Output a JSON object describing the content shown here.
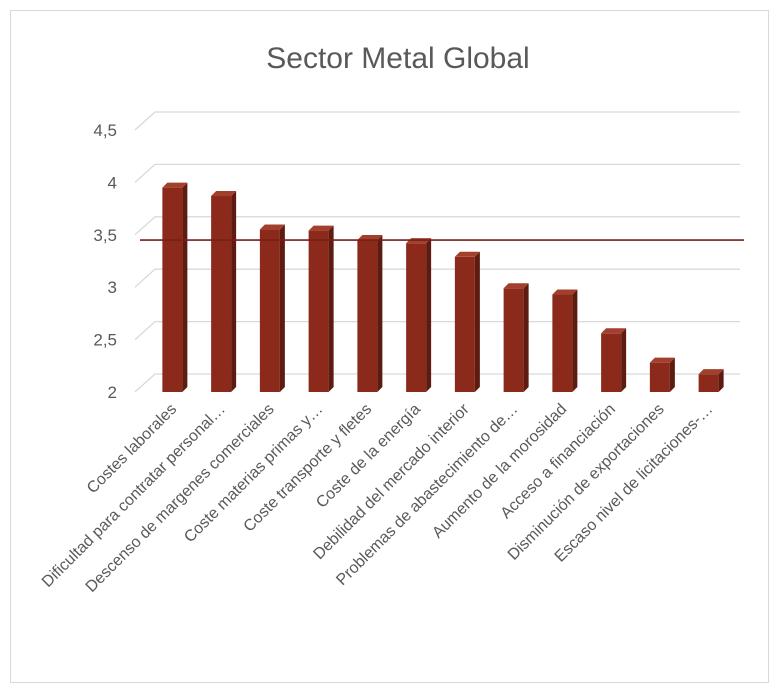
{
  "chart_data": {
    "type": "bar",
    "title": "Sector Metal Global",
    "categories": [
      "Costes laborales",
      "Dificultad para contratar personal…",
      "Descenso de margenes comerciales",
      "Coste materias primas y…",
      "Coste transporte y fletes",
      "Coste de la energía",
      "Debilidad del mercado interior",
      "Problemas de abastecimiento de…",
      "Aumento de la morosidad",
      "Acceso a  financiación",
      "Disminución de exportaciones",
      "Escaso nivel de licitaciones-…"
    ],
    "values": [
      3.95,
      3.87,
      3.55,
      3.54,
      3.45,
      3.42,
      3.29,
      2.99,
      2.93,
      2.56,
      2.28,
      2.17
    ],
    "y_ticks": [
      "2",
      "2,5",
      "3",
      "3,5",
      "4",
      "4,5"
    ],
    "ylim": [
      2,
      4.5
    ],
    "reference_line": 3.45,
    "xlabel": "",
    "ylabel": "",
    "grid": true,
    "bar_style": "3d-column",
    "colors": {
      "bar_front": "#8b2a1a",
      "bar_side": "#5e1b10",
      "bar_top": "#a3402d",
      "reference_line": "#7a1f14",
      "gridline": "#d9d9d9",
      "text": "#595959"
    }
  }
}
